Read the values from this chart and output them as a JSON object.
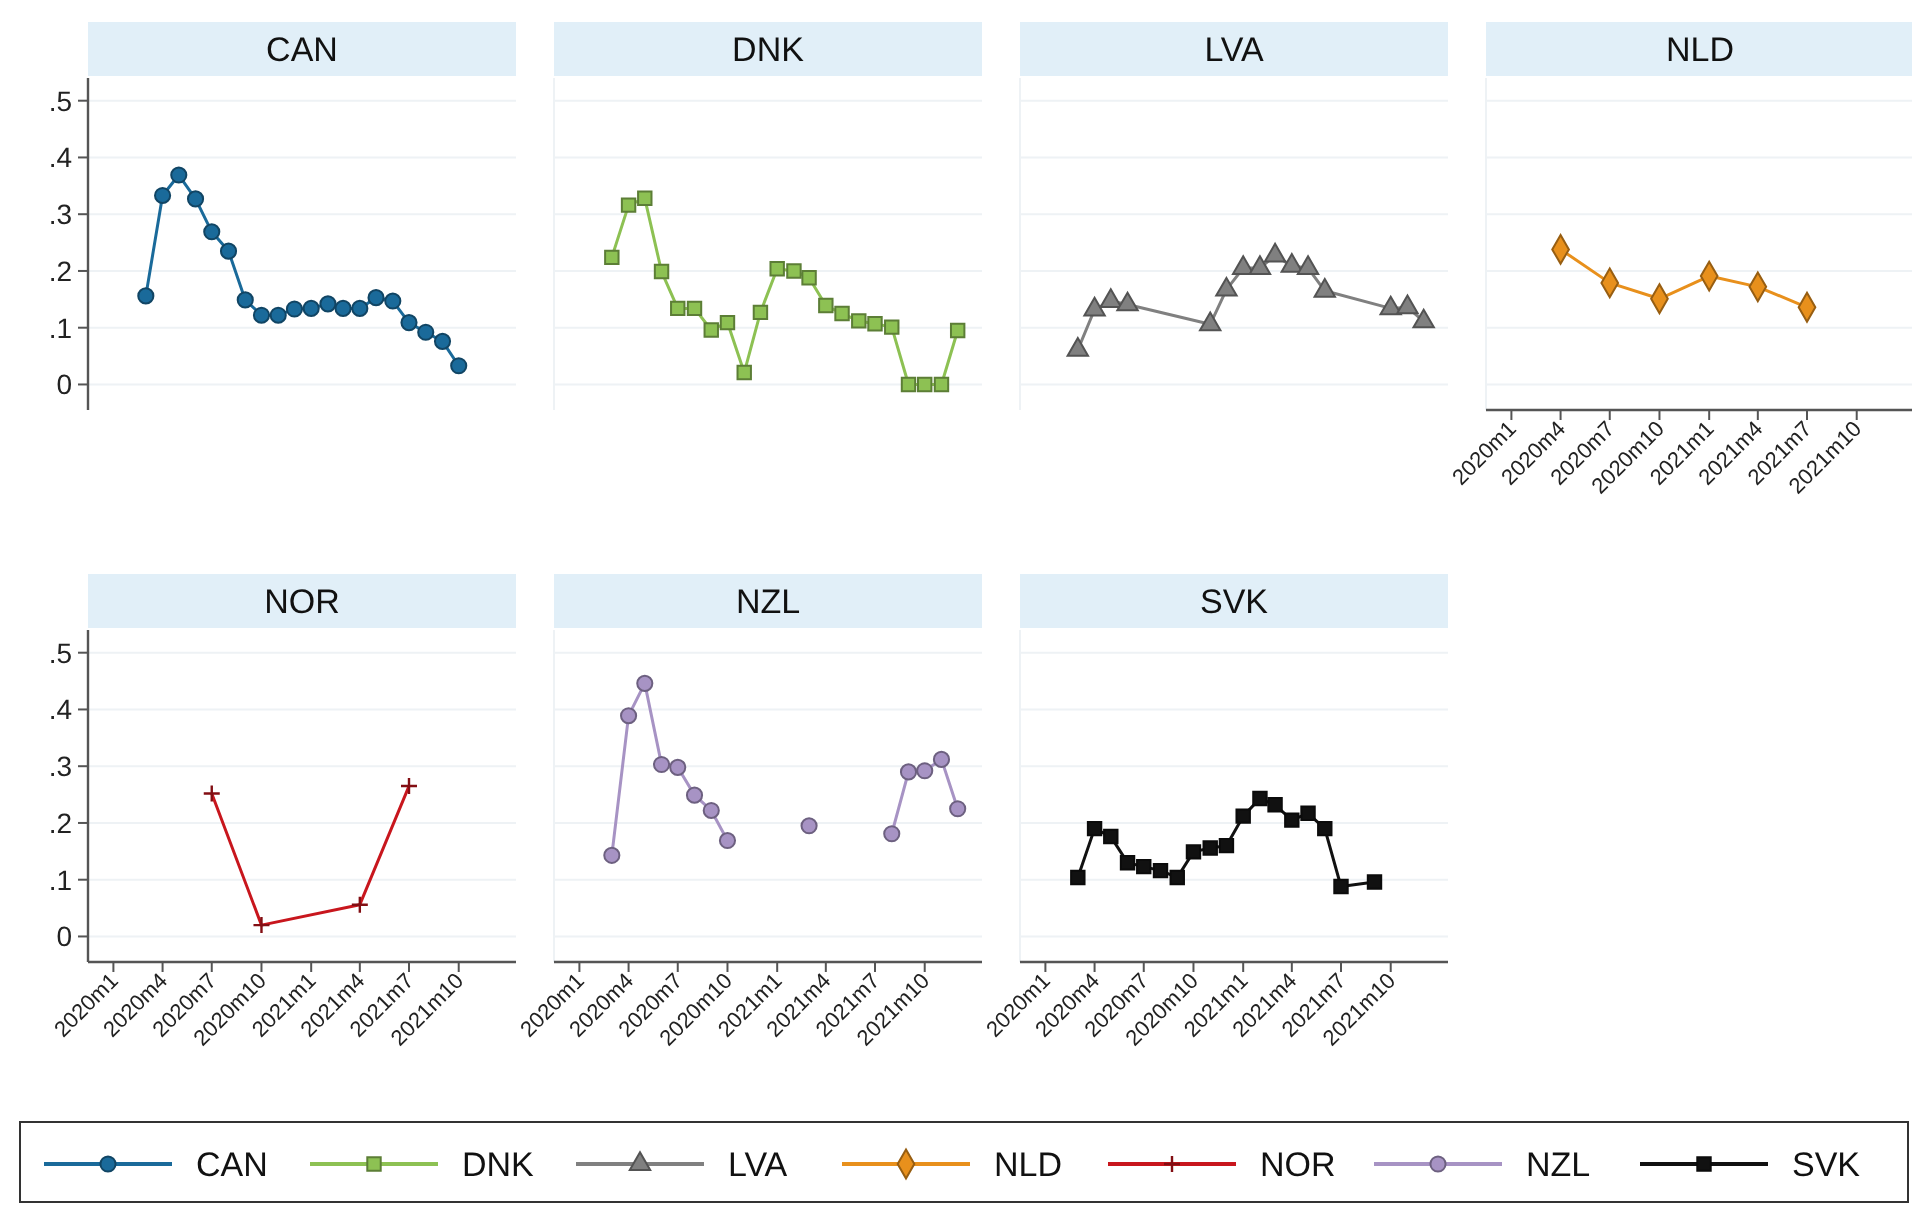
{
  "chart_data": [
    {
      "type": "line",
      "title": "CAN",
      "xlim": [
        "2019-11-15",
        "2022-01-15"
      ],
      "ylim": [
        -0.045,
        0.54
      ],
      "yticks": [
        0,
        {
          "value": 0.1,
          "label": ".1"
        },
        {
          "value": 0.2,
          "label": ".2"
        },
        {
          "value": 0.3,
          "label": ".3"
        },
        {
          "value": 0.4,
          "label": ".4"
        },
        {
          "value": 0.5,
          "label": ".5"
        }
      ],
      "tick_labels": "y",
      "grid": "y",
      "legend": "bottom",
      "series": [
        {
          "name": "CAN",
          "color": "#1a6a9a",
          "marker": "circle",
          "x": [
            "2020-03",
            "2020-04",
            "2020-05",
            "2020-06",
            "2020-07",
            "2020-08",
            "2020-09",
            "2020-10",
            "2020-11",
            "2020-12",
            "2021-01",
            "2021-02",
            "2021-03",
            "2021-04",
            "2021-05",
            "2021-06",
            "2021-07",
            "2021-08",
            "2021-09",
            "2021-10"
          ],
          "values": [
            0.156,
            0.333,
            0.369,
            0.327,
            0.269,
            0.235,
            0.149,
            0.122,
            0.122,
            0.133,
            0.134,
            0.142,
            0.134,
            0.134,
            0.153,
            0.147,
            0.109,
            0.092,
            0.076,
            0.033
          ]
        }
      ]
    },
    {
      "type": "line",
      "title": "DNK",
      "xlim": [
        "2019-11-15",
        "2022-01-15"
      ],
      "ylim": [
        -0.045,
        0.54
      ],
      "yticks": [
        0,
        0.1,
        0.2,
        0.3,
        0.4,
        0.5
      ],
      "tick_labels": false,
      "grid": "y",
      "legend": "bottom",
      "series": [
        {
          "name": "DNK",
          "color": "#8dc153",
          "marker": "square",
          "x": [
            "2020-03",
            "2020-04",
            "2020-05",
            "2020-06",
            "2020-07",
            "2020-08",
            "2020-09",
            "2020-10",
            "2020-11",
            "2020-12",
            "2021-01",
            "2021-02",
            "2021-03",
            "2021-04",
            "2021-05",
            "2021-06",
            "2021-07",
            "2021-08",
            "2021-09",
            "2021-10",
            "2021-11",
            "2021-12"
          ],
          "values": [
            0.224,
            0.316,
            0.328,
            0.199,
            0.134,
            0.134,
            0.096,
            0.109,
            0.021,
            0.127,
            0.204,
            0.2,
            0.188,
            0.139,
            0.125,
            0.112,
            0.107,
            0.101,
            0,
            0,
            0,
            0.095
          ]
        }
      ]
    },
    {
      "type": "line",
      "title": "LVA",
      "xlim": [
        "2019-11-15",
        "2022-01-15"
      ],
      "ylim": [
        -0.045,
        0.54
      ],
      "yticks": [
        0,
        0.1,
        0.2,
        0.3,
        0.4,
        0.5
      ],
      "tick_labels": false,
      "grid": "y",
      "legend": "bottom",
      "series": [
        {
          "name": "LVA",
          "color": "#808080",
          "marker": "triangle",
          "x": [
            "2020-03",
            "2020-04",
            "2020-05",
            "2020-06",
            "2020-11",
            "2020-12",
            "2021-01",
            "2021-02",
            "2021-03",
            "2021-04",
            "2021-05",
            "2021-06",
            "2021-10",
            "2021-11",
            "2021-12"
          ],
          "values": [
            0.061,
            0.132,
            0.147,
            0.141,
            0.106,
            0.167,
            0.205,
            0.205,
            0.227,
            0.209,
            0.205,
            0.165,
            0.134,
            0.136,
            0.111
          ]
        }
      ]
    },
    {
      "type": "line",
      "title": "NLD",
      "xlim": [
        "2019-11-15",
        "2022-01-15"
      ],
      "ylim": [
        -0.045,
        0.54
      ],
      "xticks": [
        {
          "value": "2020-01",
          "label": "2020m1"
        },
        {
          "value": "2020-04",
          "label": "2020m4"
        },
        {
          "value": "2020-07",
          "label": "2020m7"
        },
        {
          "value": "2020-10",
          "label": "2020m10"
        },
        {
          "value": "2021-01",
          "label": "2021m1"
        },
        {
          "value": "2021-04",
          "label": "2021m4"
        },
        {
          "value": "2021-07",
          "label": "2021m7"
        },
        {
          "value": "2021-10",
          "label": "2021m10"
        }
      ],
      "yticks": [
        0,
        0.1,
        0.2,
        0.3,
        0.4,
        0.5
      ],
      "tick_labels": "x",
      "grid": "y",
      "legend": "bottom",
      "series": [
        {
          "name": "NLD",
          "color": "#e8901c",
          "marker": "diamond",
          "x": [
            "2020-04",
            "2020-07",
            "2020-10",
            "2021-01",
            "2021-04",
            "2021-07"
          ],
          "values": [
            0.238,
            0.179,
            0.151,
            0.191,
            0.172,
            0.136
          ]
        }
      ]
    },
    {
      "type": "line",
      "title": "NOR",
      "xlim": [
        "2019-11-15",
        "2022-01-15"
      ],
      "ylim": [
        -0.045,
        0.54
      ],
      "xticks": [
        {
          "value": "2020-01",
          "label": "2020m1"
        },
        {
          "value": "2020-04",
          "label": "2020m4"
        },
        {
          "value": "2020-07",
          "label": "2020m7"
        },
        {
          "value": "2020-10",
          "label": "2020m10"
        },
        {
          "value": "2021-01",
          "label": "2021m1"
        },
        {
          "value": "2021-04",
          "label": "2021m4"
        },
        {
          "value": "2021-07",
          "label": "2021m7"
        },
        {
          "value": "2021-10",
          "label": "2021m10"
        }
      ],
      "yticks": [
        0,
        {
          "value": 0.1,
          "label": ".1"
        },
        {
          "value": 0.2,
          "label": ".2"
        },
        {
          "value": 0.3,
          "label": ".3"
        },
        {
          "value": 0.4,
          "label": ".4"
        },
        {
          "value": 0.5,
          "label": ".5"
        }
      ],
      "grid": "y",
      "legend": "bottom",
      "series": [
        {
          "name": "NOR",
          "color": "#c8161d",
          "marker": "cross",
          "x": [
            "2020-07",
            "2020-10",
            "2021-04",
            "2021-07"
          ],
          "values": [
            0.252,
            0.02,
            0.056,
            0.265
          ]
        }
      ]
    },
    {
      "type": "line",
      "title": "NZL",
      "xlim": [
        "2019-11-15",
        "2022-01-15"
      ],
      "ylim": [
        -0.045,
        0.54
      ],
      "xticks": [
        {
          "value": "2020-01",
          "label": "2020m1"
        },
        {
          "value": "2020-04",
          "label": "2020m4"
        },
        {
          "value": "2020-07",
          "label": "2020m7"
        },
        {
          "value": "2020-10",
          "label": "2020m10"
        },
        {
          "value": "2021-01",
          "label": "2021m1"
        },
        {
          "value": "2021-04",
          "label": "2021m4"
        },
        {
          "value": "2021-07",
          "label": "2021m7"
        },
        {
          "value": "2021-10",
          "label": "2021m10"
        }
      ],
      "yticks": [
        0,
        0.1,
        0.2,
        0.3,
        0.4,
        0.5
      ],
      "tick_labels": "x",
      "grid": "y",
      "legend": "bottom",
      "series": [
        {
          "name": "NZL",
          "color": "#a793c4",
          "marker": "circle",
          "x": [
            "2020-03",
            "2020-04",
            "2020-05",
            "2020-06",
            "2020-07",
            "2020-08",
            "2020-09",
            "2020-10",
            "2020-11",
            "2020-12",
            "2021-01",
            "2021-02",
            "2021-03",
            "2021-04",
            "2021-05",
            "2021-06",
            "2021-07",
            "2021-08",
            "2021-09",
            "2021-10",
            "2021-11",
            "2021-12"
          ],
          "values": [
            0.143,
            0.389,
            0.446,
            0.303,
            0.298,
            0.249,
            0.222,
            0.169,
            null,
            null,
            null,
            null,
            0.195,
            null,
            null,
            null,
            null,
            0.181,
            0.29,
            0.292,
            0.312,
            0.225
          ]
        }
      ]
    },
    {
      "type": "line",
      "title": "SVK",
      "xlim": [
        "2019-11-15",
        "2022-01-15"
      ],
      "ylim": [
        -0.045,
        0.54
      ],
      "xticks": [
        {
          "value": "2020-01",
          "label": "2020m1"
        },
        {
          "value": "2020-04",
          "label": "2020m4"
        },
        {
          "value": "2020-07",
          "label": "2020m7"
        },
        {
          "value": "2020-10",
          "label": "2020m10"
        },
        {
          "value": "2021-01",
          "label": "2021m1"
        },
        {
          "value": "2021-04",
          "label": "2021m4"
        },
        {
          "value": "2021-07",
          "label": "2021m7"
        },
        {
          "value": "2021-10",
          "label": "2021m10"
        }
      ],
      "yticks": [
        0,
        0.1,
        0.2,
        0.3,
        0.4,
        0.5
      ],
      "tick_labels": "x",
      "grid": "y",
      "legend": "bottom",
      "series": [
        {
          "name": "SVK",
          "color": "#111111",
          "marker": "square",
          "x": [
            "2020-03",
            "2020-04",
            "2020-05",
            "2020-06",
            "2020-07",
            "2020-08",
            "2020-09",
            "2020-10",
            "2020-11",
            "2020-12",
            "2021-01",
            "2021-02",
            "2021-03",
            "2021-04",
            "2021-05",
            "2021-06",
            "2021-07",
            "2021-09"
          ],
          "values": [
            0.104,
            0.19,
            0.176,
            0.13,
            0.123,
            0.116,
            0.104,
            0.149,
            0.156,
            0.16,
            0.212,
            0.243,
            0.232,
            0.205,
            0.217,
            0.19,
            0.088,
            0.096
          ]
        }
      ]
    }
  ]
}
